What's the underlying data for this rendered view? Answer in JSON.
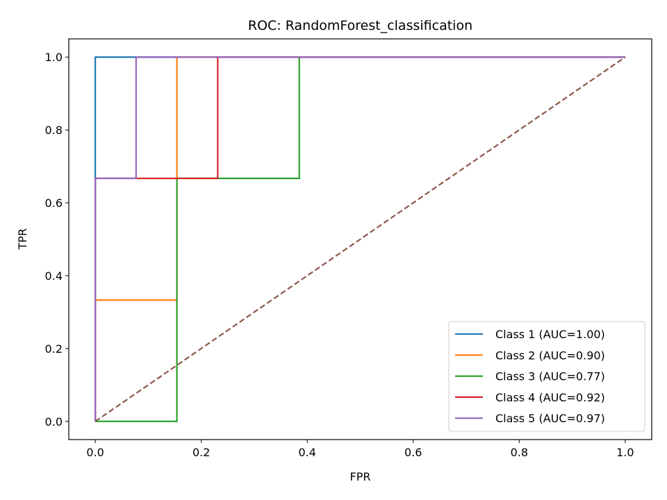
{
  "chart_data": {
    "type": "line",
    "title": "ROC: RandomForest_classification",
    "xlabel": "FPR",
    "ylabel": "TPR",
    "xlim": [
      -0.05,
      1.05
    ],
    "ylim": [
      -0.05,
      1.05
    ],
    "xticks": [
      0.0,
      0.2,
      0.4,
      0.6,
      0.8,
      1.0
    ],
    "yticks": [
      0.0,
      0.2,
      0.4,
      0.6,
      0.8,
      1.0
    ],
    "xtick_labels": [
      "0.0",
      "0.2",
      "0.4",
      "0.6",
      "0.8",
      "1.0"
    ],
    "ytick_labels": [
      "0.0",
      "0.2",
      "0.4",
      "0.6",
      "0.8",
      "1.0"
    ],
    "grid": false,
    "legend_position": "bottom-right",
    "series": [
      {
        "name": "Class 1 (AUC=1.00)",
        "color": "#1f77b4",
        "x": [
          0.0,
          0.0,
          0.0,
          1.0
        ],
        "y": [
          0.0,
          0.667,
          1.0,
          1.0
        ]
      },
      {
        "name": "Class 2 (AUC=0.90)",
        "color": "#ff7f0e",
        "x": [
          0.0,
          0.0,
          0.154,
          0.154,
          0.154,
          1.0
        ],
        "y": [
          0.0,
          0.333,
          0.333,
          0.667,
          1.0,
          1.0
        ]
      },
      {
        "name": "Class 3 (AUC=0.77)",
        "color": "#2ca02c",
        "x": [
          0.0,
          0.154,
          0.154,
          0.385,
          0.385,
          1.0
        ],
        "y": [
          0.0,
          0.0,
          0.667,
          0.667,
          1.0,
          1.0
        ]
      },
      {
        "name": "Class 4 (AUC=0.92)",
        "color": "#d62728",
        "x": [
          0.0,
          0.0,
          0.231,
          0.231,
          1.0
        ],
        "y": [
          0.0,
          0.667,
          0.667,
          1.0,
          1.0
        ]
      },
      {
        "name": "Class 5 (AUC=0.97)",
        "color": "#9467bd",
        "x": [
          0.0,
          0.0,
          0.077,
          0.077,
          1.0
        ],
        "y": [
          0.0,
          0.667,
          0.667,
          1.0,
          1.0
        ]
      }
    ],
    "diagonal": {
      "color": "#8c564b",
      "style": "dashed",
      "x": [
        0.0,
        1.0
      ],
      "y": [
        0.0,
        1.0
      ]
    }
  }
}
